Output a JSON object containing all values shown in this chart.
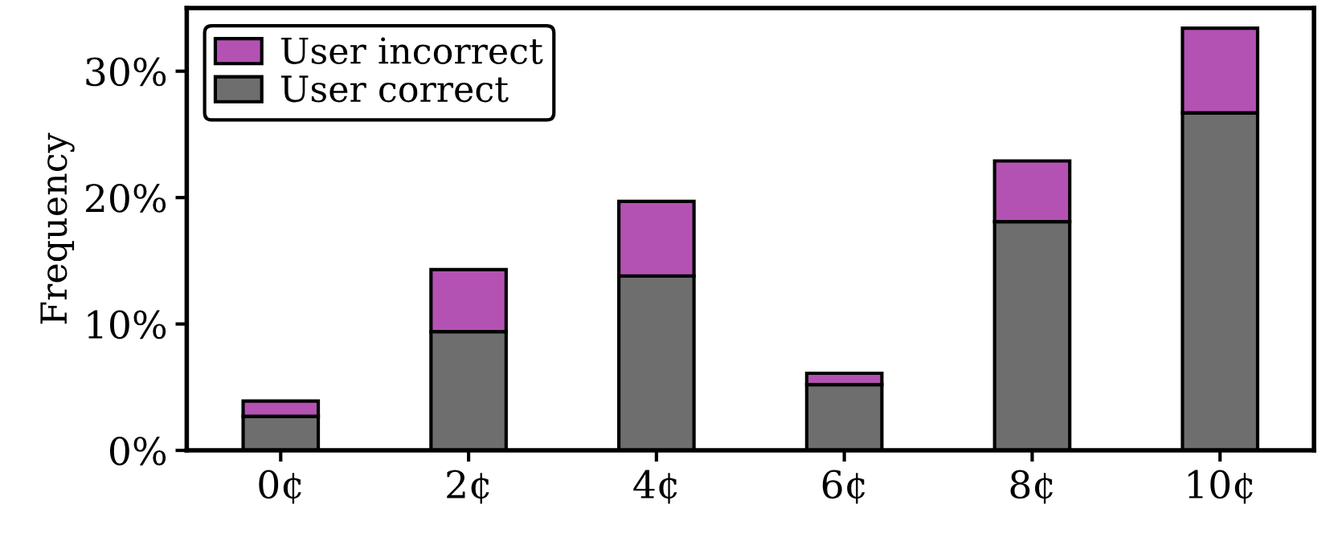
{
  "chart_data": {
    "type": "bar",
    "stacked": true,
    "ylabel": "Frequency",
    "categories": [
      "0¢",
      "2¢",
      "4¢",
      "6¢",
      "8¢",
      "10¢"
    ],
    "series": [
      {
        "name": "User correct",
        "color": "#6e6e6e",
        "values": [
          2.7,
          9.4,
          13.8,
          5.2,
          18.1,
          26.7
        ]
      },
      {
        "name": "User incorrect",
        "color": "#b452b4",
        "values": [
          1.2,
          4.9,
          5.9,
          0.9,
          4.8,
          6.7
        ]
      }
    ],
    "ylim": [
      0,
      35
    ],
    "yticks": [
      {
        "value": 0,
        "label": "0%"
      },
      {
        "value": 10,
        "label": "10%"
      },
      {
        "value": 20,
        "label": "20%"
      },
      {
        "value": 30,
        "label": "30%"
      }
    ],
    "legend": "top left",
    "grid": false
  }
}
